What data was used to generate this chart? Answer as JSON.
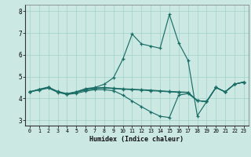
{
  "xlabel": "Humidex (Indice chaleur)",
  "background_color": "#cbe8e3",
  "grid_color": "#a8d4ce",
  "line_color": "#1a6e66",
  "xlim": [
    -0.5,
    23.5
  ],
  "ylim": [
    2.75,
    8.3
  ],
  "yticks": [
    3,
    4,
    5,
    6,
    7,
    8
  ],
  "xticks": [
    0,
    1,
    2,
    3,
    4,
    5,
    6,
    7,
    8,
    9,
    10,
    11,
    12,
    13,
    14,
    15,
    16,
    17,
    18,
    19,
    20,
    21,
    22,
    23
  ],
  "line1_y": [
    4.3,
    4.4,
    4.5,
    4.3,
    4.2,
    4.3,
    4.45,
    4.5,
    4.65,
    4.95,
    5.8,
    6.95,
    6.5,
    6.4,
    6.3,
    7.85,
    6.55,
    5.75,
    3.2,
    3.85,
    4.5,
    4.3,
    4.65,
    4.75
  ],
  "line2_y": [
    4.3,
    4.4,
    4.5,
    4.3,
    4.2,
    4.28,
    4.38,
    4.45,
    4.48,
    4.45,
    4.42,
    4.4,
    4.38,
    4.35,
    4.33,
    4.3,
    4.28,
    4.27,
    3.9,
    3.85,
    4.5,
    4.3,
    4.65,
    4.75
  ],
  "line3_y": [
    4.3,
    4.38,
    4.47,
    4.28,
    4.18,
    4.23,
    4.33,
    4.4,
    4.4,
    4.35,
    4.15,
    3.88,
    3.62,
    3.38,
    3.18,
    3.12,
    4.15,
    4.22,
    3.9,
    3.85,
    4.5,
    4.3,
    4.65,
    4.75
  ],
  "line4_y": [
    4.3,
    4.42,
    4.52,
    4.32,
    4.22,
    4.3,
    4.42,
    4.48,
    4.5,
    4.47,
    4.44,
    4.42,
    4.4,
    4.38,
    4.35,
    4.32,
    4.3,
    4.28,
    3.9,
    3.85,
    4.5,
    4.3,
    4.65,
    4.75
  ]
}
